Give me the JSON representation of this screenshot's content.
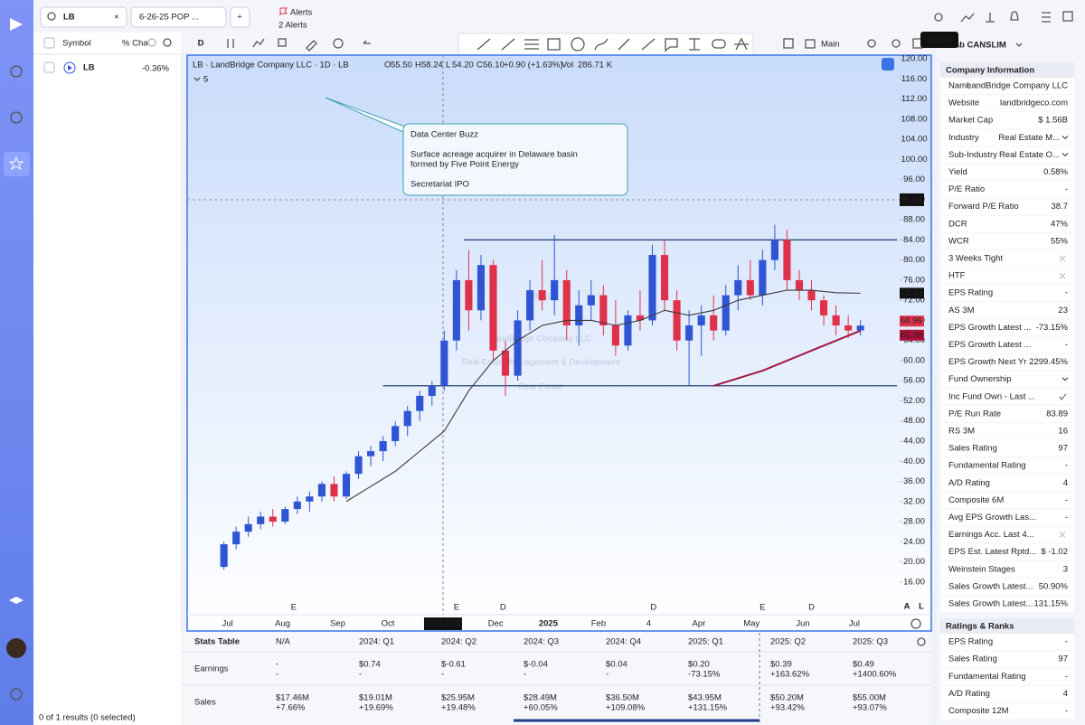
{
  "toolbar": {
    "search": "LB",
    "watchlist": "6-26-25 POP ...",
    "alerts": "Alerts",
    "alerts_count": "2 Alerts",
    "interval": "D",
    "layout": "Main",
    "export_tooltip": "Export"
  },
  "watchlist": {
    "columns": [
      "Symbol",
      "% Change Today"
    ],
    "rows": [
      {
        "symbol": "LB",
        "change": "-0.36%"
      }
    ],
    "footer": "0 of 1 results (0 selected)"
  },
  "chart_data": {
    "type": "candlestick",
    "symbol_line": "LB · LandBridge Company LLC · 1D · LB",
    "ohlc_header": [
      {
        "label": "O",
        "value": "55.50"
      },
      {
        "label": "H",
        "value": "58.24"
      },
      {
        "label": "L",
        "value": "54.20"
      },
      {
        "label": "C",
        "value": "56.10"
      }
    ],
    "change": "+0.90 (+1.63%)",
    "volume": {
      "label": "Vol",
      "value": "286.71 K"
    },
    "studies_count": 5,
    "watermark": [
      "LB, 1D",
      "LandBridge Company LLC",
      "Real Estate Management & Development",
      "Real Estate"
    ],
    "annotation": {
      "title": "Data Center Buzz",
      "lines": [
        "Surface acreage acquirer in Delaware basin",
        "formed by Five Point Energy",
        "Secretariat IPO"
      ]
    },
    "xlim": [
      -3,
      55.2
    ],
    "ylim": [
      9.5,
      120.9
    ],
    "yticks": [
      {
        "value": 16,
        "label": "16.00"
      },
      {
        "value": 20,
        "label": "20.00"
      },
      {
        "value": 24,
        "label": "24.00"
      },
      {
        "value": 28,
        "label": "28.00"
      },
      {
        "value": 32,
        "label": "32.00"
      },
      {
        "value": 36,
        "label": "36.00"
      },
      {
        "value": 40,
        "label": "40.00"
      },
      {
        "value": 44,
        "label": "44.00"
      },
      {
        "value": 48,
        "label": "48.00"
      },
      {
        "value": 52,
        "label": "52.00"
      },
      {
        "value": 56,
        "label": "56.00"
      },
      {
        "value": 60,
        "label": "60.00"
      },
      {
        "value": 64,
        "label": "64.00"
      },
      {
        "value": 68,
        "label": "68.00"
      },
      {
        "value": 72,
        "label": "72.00"
      },
      {
        "value": 76,
        "label": "76.00"
      },
      {
        "value": 80,
        "label": "80.00"
      },
      {
        "value": 84,
        "label": "84.00"
      },
      {
        "value": 88,
        "label": "88.00"
      },
      {
        "value": 92,
        "label": "92.00"
      },
      {
        "value": 96,
        "label": "96.00"
      },
      {
        "value": 100,
        "label": "100.00"
      },
      {
        "value": 104,
        "label": "104.00"
      },
      {
        "value": 108,
        "label": "108.00"
      },
      {
        "value": 112,
        "label": "112.00"
      },
      {
        "value": 116,
        "label": "116.00"
      },
      {
        "value": 120,
        "label": "120.00"
      }
    ],
    "xticks": [
      {
        "value": 0.3,
        "label": "Jul"
      },
      {
        "value": 4.8,
        "label": "Aug"
      },
      {
        "value": 9.3,
        "label": "Sep"
      },
      {
        "value": 13.4,
        "label": "Oct"
      },
      {
        "value": 22.2,
        "label": "Dec"
      },
      {
        "value": 26.5,
        "label": "2025"
      },
      {
        "value": 30.6,
        "label": "Feb"
      },
      {
        "value": 34.7,
        "label": "4"
      },
      {
        "value": 38.8,
        "label": "Apr"
      },
      {
        "value": 43.1,
        "label": "May"
      },
      {
        "value": 47.3,
        "label": "Jun"
      },
      {
        "value": 51.5,
        "label": "Jul"
      }
    ],
    "crosshair": {
      "x": {
        "value": 17.9,
        "label": "31-10-24"
      },
      "y": 91.98
    },
    "up_color": "#2f55d4",
    "down_color": "#e0314b",
    "x": [
      0,
      1,
      2,
      3,
      4,
      5,
      6,
      7,
      8,
      9,
      10,
      11,
      12,
      13,
      14,
      15,
      16,
      17,
      18,
      19,
      20,
      21,
      22,
      23,
      24,
      25,
      26,
      27,
      28,
      29,
      30,
      31,
      32,
      33,
      34,
      35,
      36,
      37,
      38,
      39,
      40,
      41,
      42,
      43,
      44,
      45,
      46,
      47,
      48,
      49,
      50,
      51,
      52
    ],
    "open": [
      19,
      23.5,
      26,
      27.5,
      29,
      28,
      30.5,
      32,
      33,
      35.5,
      33,
      37.5,
      41,
      42,
      44,
      47,
      50,
      53,
      55,
      64,
      76,
      70,
      79,
      62,
      57,
      68,
      74,
      72,
      76,
      67,
      71,
      73,
      67,
      63,
      69,
      68,
      81,
      72,
      64,
      67,
      69,
      66,
      73,
      76,
      73,
      80,
      84,
      76,
      74,
      72,
      69,
      67,
      66
    ],
    "high": [
      24,
      27,
      29,
      30,
      30.5,
      31,
      33,
      34,
      36,
      37,
      38,
      42,
      43,
      45,
      48,
      51,
      54,
      56,
      66,
      78,
      82,
      81,
      80,
      64,
      70,
      76,
      80,
      85,
      78,
      74,
      76,
      75,
      72,
      70,
      74,
      83,
      84,
      74,
      70,
      71,
      73,
      75,
      79,
      80,
      82,
      87,
      86,
      78,
      76,
      73,
      71,
      69,
      68
    ],
    "low": [
      18.5,
      22.5,
      25,
      26.5,
      27,
      27.5,
      29.5,
      30,
      32,
      32,
      32.5,
      36.5,
      39,
      40,
      43,
      45,
      48,
      51,
      54,
      62,
      66,
      68,
      60,
      53,
      56,
      66,
      70,
      69,
      64,
      63,
      68,
      65,
      61,
      62,
      66,
      67,
      70,
      62,
      55,
      61,
      64,
      65,
      70,
      72,
      71,
      78,
      74,
      72,
      70,
      67,
      65,
      64.5,
      65
    ],
    "close": [
      23.5,
      26,
      27.5,
      29,
      28,
      30.5,
      32,
      33,
      35.5,
      33,
      37.5,
      41,
      42,
      44,
      47,
      50,
      53,
      55,
      64,
      76,
      70,
      79,
      62,
      57,
      68,
      74,
      72,
      76,
      67,
      71,
      73,
      67,
      63,
      69,
      68,
      81,
      72,
      64,
      67,
      69,
      66,
      73,
      76,
      73,
      80,
      84,
      76,
      74,
      72,
      69,
      67,
      66,
      66.96
    ],
    "lines": [
      {
        "color": "#3a3a3a",
        "x": [
          10,
          12,
          14,
          16,
          18,
          20,
          22,
          24,
          26,
          28,
          30,
          32,
          34,
          36,
          38,
          40,
          42,
          44,
          46,
          48,
          50,
          52
        ],
        "values": [
          32,
          35,
          38,
          42,
          46,
          54,
          60,
          64,
          67,
          68,
          68,
          67,
          68,
          70,
          69,
          70,
          72,
          73,
          74,
          74,
          73.5,
          73.4
        ]
      },
      {
        "color": "#a3153f",
        "x": [
          40,
          44,
          48,
          52
        ],
        "values": [
          55,
          58,
          62,
          65.96
        ]
      }
    ],
    "levels": [
      {
        "value": 84,
        "x": [
          19.6,
          55
        ]
      },
      {
        "value": 55,
        "x": [
          13,
          55
        ]
      }
    ],
    "price_tags": [
      {
        "value": 73.4,
        "label": "73.40",
        "color": "#111111"
      },
      {
        "value": 66.96,
        "label": "66.96",
        "color": "#e0314b"
      },
      {
        "value": 65.96,
        "label": "65.96",
        "color": "#b0103a"
      }
    ],
    "events": [
      {
        "label": "E",
        "x": 5.7,
        "color": "#e0314b"
      },
      {
        "label": "E",
        "x": 19,
        "color": "#e0314b"
      },
      {
        "label": "D",
        "x": 22.8,
        "color": "#2f55d4"
      },
      {
        "label": "D",
        "x": 35.1,
        "color": "#2f55d4"
      },
      {
        "label": "E",
        "x": 44,
        "color": "#e0314b"
      },
      {
        "label": "D",
        "x": 48,
        "color": "#2f55d4"
      }
    ],
    "axis_buttons": [
      "A",
      "L"
    ]
  },
  "right_panel": {
    "title": "Lab CANSLIM",
    "sections": [
      {
        "title": "Company Information",
        "rows": [
          {
            "label": "Name",
            "value": "LandBridge Company LLC"
          },
          {
            "label": "Website",
            "value": "landbridgeco.com"
          },
          {
            "label": "Market Cap",
            "value": "$ 1.56B"
          },
          {
            "label": "Industry",
            "value": "Real Estate M...",
            "icon": "chevron"
          },
          {
            "label": "Sub-Industry",
            "value": "Real Estate O...",
            "icon": "chevron"
          },
          {
            "label": "Yield",
            "value": "0.58%"
          },
          {
            "label": "P/E Ratio",
            "value": "-"
          },
          {
            "label": "Forward P/E Ratio",
            "value": "38.7"
          },
          {
            "label": "DCR",
            "value": "47%",
            "color": "#c2188f"
          },
          {
            "label": "WCR",
            "value": "55%",
            "color": "#2f55d4"
          },
          {
            "label": "3 Weeks Tight",
            "icon": "x"
          },
          {
            "label": "HTF",
            "icon": "x"
          },
          {
            "label": "EPS Rating",
            "value": "-"
          },
          {
            "label": "AS 3M",
            "value": "23"
          },
          {
            "label": "EPS Growth Latest ...",
            "value": "-73.15%",
            "color": "#e0314b"
          },
          {
            "label": "EPS Growth Latest ...",
            "value": "-",
            "color": "#e0314b"
          },
          {
            "label": "EPS Growth Next Yr ...",
            "value": "2299.45%",
            "color": "#2f55d4"
          },
          {
            "label": "Fund Ownership",
            "icon": "chevron"
          },
          {
            "label": "Inc Fund Own - Last ...",
            "icon": "check"
          },
          {
            "label": "P/E Run Rate",
            "value": "83.89"
          },
          {
            "label": "RS 3M",
            "value": "16"
          },
          {
            "label": "Sales Rating",
            "value": "97"
          },
          {
            "label": "Fundamental Rating",
            "value": "-"
          },
          {
            "label": "A/D Rating",
            "value": "4"
          },
          {
            "label": "Composite 6M",
            "value": "-"
          },
          {
            "label": "Avg EPS Growth Las...",
            "value": "-"
          },
          {
            "label": "Earnings Acc. Last 4...",
            "icon": "x"
          },
          {
            "label": "EPS Est. Latest Rptd...",
            "value": "$ -1.02"
          },
          {
            "label": "Weinstein Stages",
            "value": "3"
          },
          {
            "label": "Sales Growth Latest...",
            "value": "50.90%",
            "color": "#2f55d4"
          },
          {
            "label": "Sales Growth Latest...",
            "value": "131.15%",
            "color": "#c2188f"
          }
        ]
      },
      {
        "title": "Ratings & Ranks",
        "rows": [
          {
            "label": "EPS Rating",
            "value": "-"
          },
          {
            "label": "Sales Rating",
            "value": "97"
          },
          {
            "label": "Fundamental Rating",
            "value": "-"
          },
          {
            "label": "A/D Rating",
            "value": "4"
          },
          {
            "label": "Composite 12M",
            "value": "-"
          }
        ]
      }
    ]
  },
  "stats_table": {
    "title": "Stats Table",
    "columns": [
      "N/A",
      "2024: Q1",
      "2024: Q2",
      "2024: Q3",
      "2024: Q4",
      "2025: Q1",
      "2025: Q2",
      "2025: Q3"
    ],
    "rows": [
      {
        "label": "Earnings",
        "cells": [
          [
            "-",
            "-"
          ],
          [
            "$0.74",
            "-"
          ],
          [
            "$-0.61",
            "-"
          ],
          [
            "$-0.04",
            "-"
          ],
          [
            "$0.04",
            "-"
          ],
          [
            "$0.20",
            "-73.15%"
          ],
          [
            "$0.39",
            "+163.62%"
          ],
          [
            "$0.49",
            "+1400.60%"
          ]
        ]
      },
      {
        "label": "Sales",
        "cells": [
          [
            "$17.46M",
            "+7.66%"
          ],
          [
            "$19.01M",
            "+19.69%"
          ],
          [
            "$25.95M",
            "+19.48%"
          ],
          [
            "$28.49M",
            "+60.05%"
          ],
          [
            "$36.50M",
            "+109.08%"
          ],
          [
            "$43.95M",
            "+131.15%"
          ],
          [
            "$50.20M",
            "+93.42%"
          ],
          [
            "$55.00M",
            "+93.07%"
          ]
        ]
      }
    ]
  }
}
